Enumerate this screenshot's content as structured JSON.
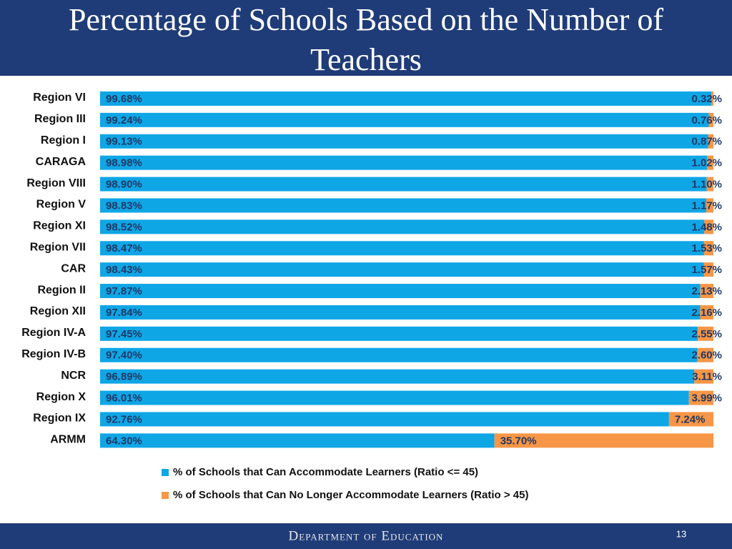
{
  "chart_data": {
    "type": "stacked-barh",
    "title": "Percentage of Schools Based on the Number of Teachers",
    "categories": [
      "Region VI",
      "Region III",
      "Region I",
      "CARAGA",
      "Region VIII",
      "Region V",
      "Region XI",
      "Region VII",
      "CAR",
      "Region II",
      "Region XII",
      "Region IV-A",
      "Region IV-B",
      "NCR",
      "Region X",
      "Region IX",
      "ARMM"
    ],
    "series": [
      {
        "name": "% of  Schools that Can Accommodate Learners (Ratio <= 45)",
        "color": "#0fa6e6",
        "values": [
          99.68,
          99.24,
          99.13,
          98.98,
          98.9,
          98.83,
          98.52,
          98.47,
          98.43,
          97.87,
          97.84,
          97.45,
          97.4,
          96.89,
          96.01,
          92.76,
          64.3
        ],
        "value_labels": [
          "99.68%",
          "99.24%",
          "99.13%",
          "98.98%",
          "98.90%",
          "98.83%",
          "98.52%",
          "98.47%",
          "98.43%",
          "97.87%",
          "97.84%",
          "97.45%",
          "97.40%",
          "96.89%",
          "96.01%",
          "92.76%",
          "64.30%"
        ]
      },
      {
        "name": "% of Schools that Can No Longer Accommodate Learners (Ratio > 45)",
        "color": "#f79646",
        "values": [
          0.32,
          0.76,
          0.87,
          1.02,
          1.1,
          1.17,
          1.48,
          1.53,
          1.57,
          2.13,
          2.16,
          2.55,
          2.6,
          3.11,
          3.99,
          7.24,
          35.7
        ],
        "value_labels": [
          "0.32%",
          "0.76%",
          "0.87%",
          "1.02%",
          "1.10%",
          "1.17%",
          "1.48%",
          "1.53%",
          "1.57%",
          "2.13%",
          "2.16%",
          "2.55%",
          "2.60%",
          "3.11%",
          "3.99%",
          "7.24%",
          "35.70%"
        ]
      }
    ],
    "xlim": [
      0,
      100
    ]
  },
  "slide": {
    "footer": "Department of Education",
    "page_number": "13"
  }
}
